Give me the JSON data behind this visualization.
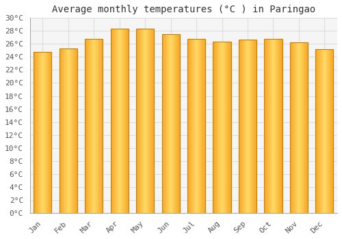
{
  "title": "Average monthly temperatures (°C ) in Paringao",
  "months": [
    "Jan",
    "Feb",
    "Mar",
    "Apr",
    "May",
    "Jun",
    "Jul",
    "Aug",
    "Sep",
    "Oct",
    "Nov",
    "Dec"
  ],
  "values": [
    24.8,
    25.3,
    26.8,
    28.3,
    28.4,
    27.5,
    26.8,
    26.4,
    26.7,
    26.8,
    26.2,
    25.2
  ],
  "bar_color_left": "#F5A623",
  "bar_color_center": "#FFD966",
  "bar_color_right": "#F5A623",
  "bar_edge_color": "#C87D00",
  "ylim": [
    0,
    30
  ],
  "ytick_step": 2,
  "background_color": "#ffffff",
  "plot_bg_color": "#f5f5f5",
  "grid_color": "#dddddd",
  "title_fontsize": 10,
  "tick_fontsize": 8,
  "font_family": "monospace"
}
